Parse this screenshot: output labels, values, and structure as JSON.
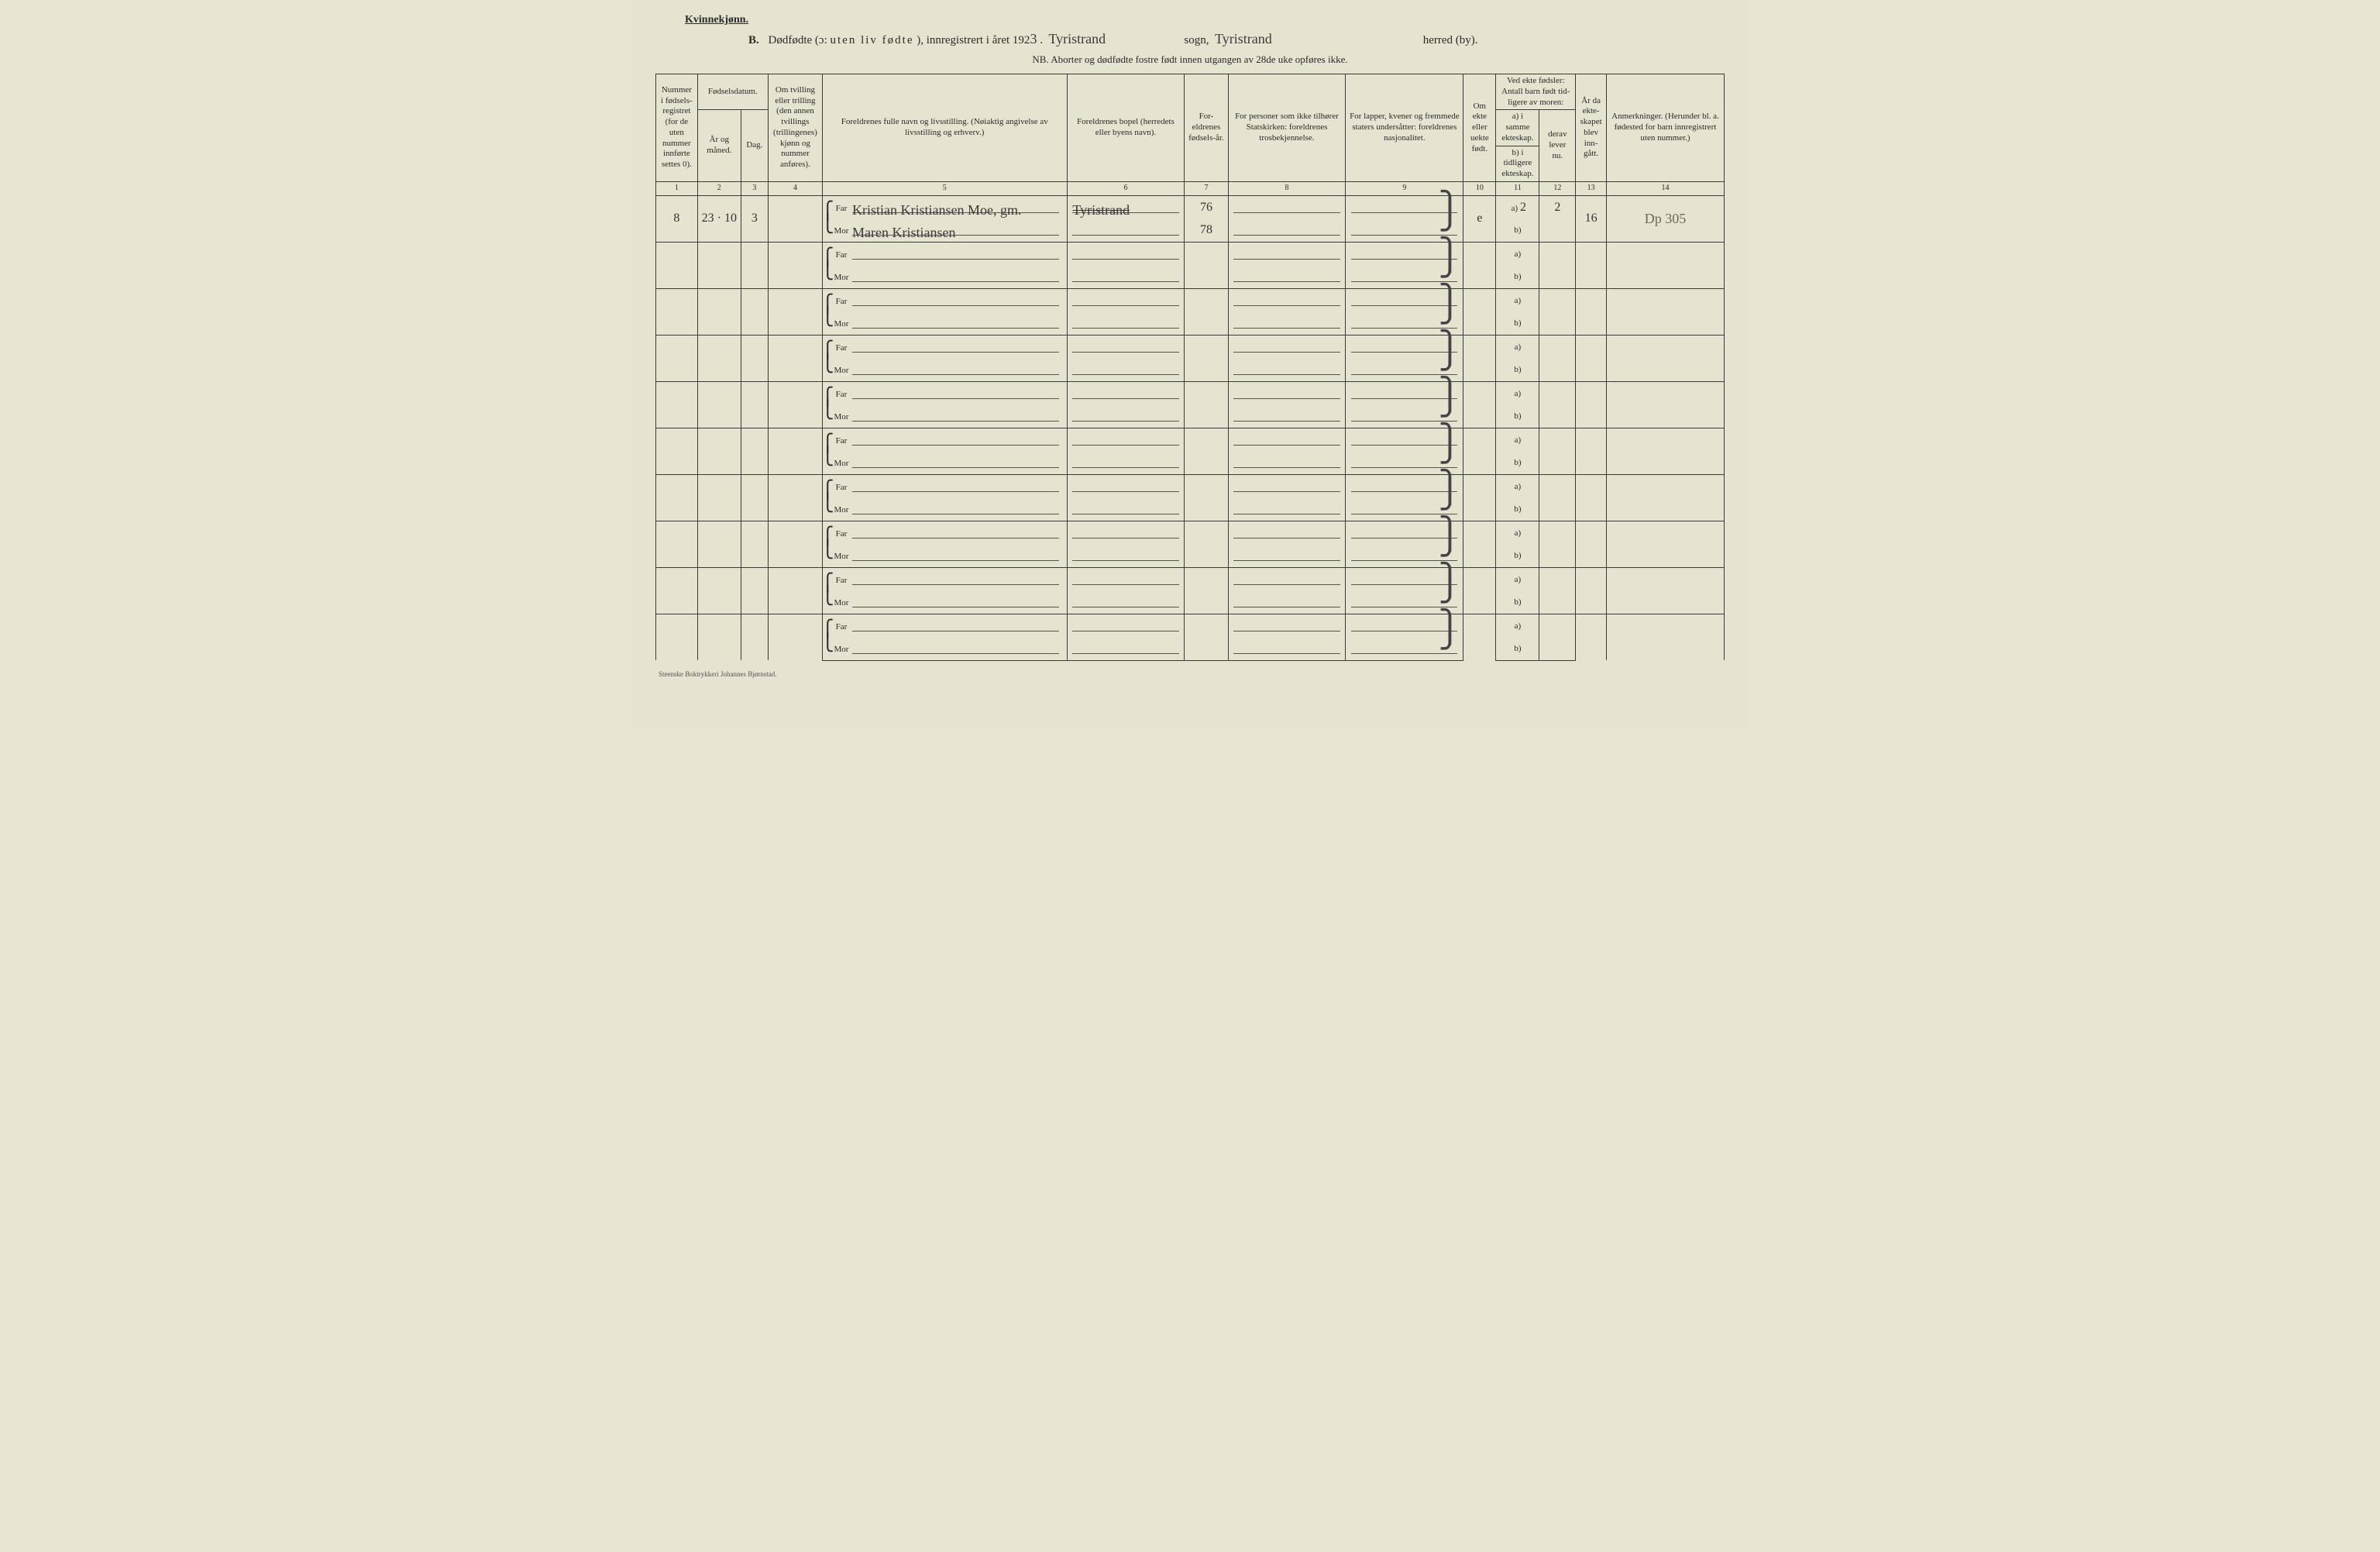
{
  "header": {
    "gender": "Kvinnekjønn.",
    "section_letter": "B.",
    "title_prefix": "Dødfødte (ɔ:",
    "title_spaced": "uten liv fødte",
    "title_suffix": "), innregistrert i året 192",
    "year_digit": "3",
    "sogn_hand": "Tyristrand",
    "sogn_label": "sogn,",
    "herred_hand": "Tyristrand",
    "herred_label": "herred (by).",
    "nb": "NB.  Aborter og dødfødte fostre født innen utgangen av 28de uke opføres ikke."
  },
  "columns": {
    "h1": "Nummer i fødsels-registret (for de uten nummer innførte settes 0).",
    "h2_top": "Fødselsdatum.",
    "h2a": "År og måned.",
    "h2b": "Dag.",
    "h4": "Om tvilling eller trilling (den annen tvillings (trillingenes) kjønn og nummer anføres).",
    "h5": "Foreldrenes fulle navn og livsstilling. (Nøiaktig angivelse av livsstilling og erhverv.)",
    "h6": "Foreldrenes bopel (herredets eller byens navn).",
    "h7": "For-eldrenes fødsels-år.",
    "h8": "For personer som ikke tilhører Statskirken: foreldrenes trosbekjennelse.",
    "h9": "For lapper, kvener og fremmede staters undersåtter: foreldrenes nasjonalitet.",
    "h10": "Om ekte eller uekte født.",
    "h11_top": "Ved ekte fødsler: Antall barn født tid-ligere av moren:",
    "h11a": "a) i samme ekteskap.",
    "h11b": "b) i tidligere ekteskap.",
    "h12": "derav lever nu.",
    "h13": "År da ekte-skapet blev inn-gått.",
    "h14": "Anmerkninger. (Herunder bl. a. fødested for barn innregistrert uten nummer.)",
    "nums": [
      "1",
      "2",
      "3",
      "4",
      "5",
      "6",
      "7",
      "8",
      "9",
      "10",
      "11",
      "12",
      "13",
      "14"
    ]
  },
  "labels": {
    "far": "Far",
    "mor": "Mor",
    "a": "a)",
    "b": "b)"
  },
  "rows": [
    {
      "num": "8",
      "year_month": "23 · 10",
      "day": "3",
      "far_name": "Kristian Kristiansen Moe, gm.",
      "mor_name": "Maren Kristiansen",
      "bopel": "Tyristrand",
      "bopel_strike": true,
      "far_year": "76",
      "mor_year": "78",
      "ekte": "e",
      "a_samme": "2",
      "derav": "2",
      "aar_ekt": "16",
      "remark": "Dp  305"
    },
    {},
    {},
    {},
    {},
    {},
    {},
    {},
    {},
    {}
  ],
  "footer": "Steenske Boktrykkeri Johannes Bjørnstad."
}
